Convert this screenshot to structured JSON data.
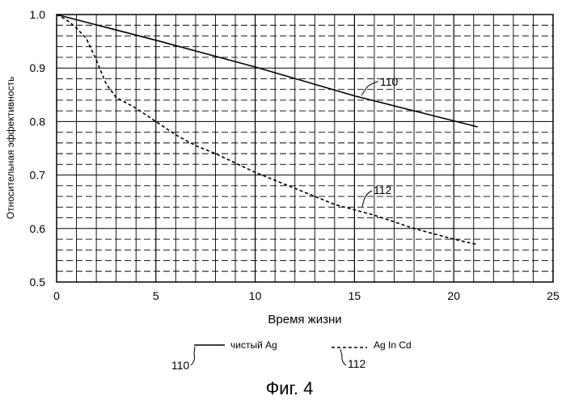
{
  "chart_data": {
    "type": "line",
    "title": "",
    "xlabel": "Время жизни",
    "ylabel": "Относительная эффективность",
    "xlim": [
      0,
      25
    ],
    "ylim": [
      0.5,
      1.0
    ],
    "xticks": [
      "0",
      "5",
      "10",
      "15",
      "20",
      "25"
    ],
    "yticks": [
      "0.5",
      "0.6",
      "0.7",
      "0.8",
      "0.9",
      "1.0"
    ],
    "grid": true,
    "series": [
      {
        "name": "чистый Ag",
        "ref": "110",
        "style": "solid",
        "x": [
          0,
          5,
          10,
          15,
          21.2
        ],
        "y": [
          1.0,
          0.952,
          0.902,
          0.848,
          0.79
        ]
      },
      {
        "name": "Ag In Cd",
        "ref": "112",
        "style": "dashed",
        "x": [
          0,
          0.5,
          1,
          1.5,
          2,
          2.5,
          3,
          4,
          5,
          6,
          7,
          8,
          10,
          12,
          14,
          16,
          18,
          20,
          21.2
        ],
        "y": [
          1.0,
          0.99,
          0.975,
          0.955,
          0.915,
          0.87,
          0.845,
          0.825,
          0.8,
          0.775,
          0.755,
          0.74,
          0.705,
          0.675,
          0.645,
          0.625,
          0.6,
          0.58,
          0.57
        ]
      }
    ],
    "legend": {
      "placement": "bottom",
      "items": [
        {
          "ref": "110",
          "label": "чистый Ag",
          "style": "solid"
        },
        {
          "ref": "112",
          "label": "Ag In Cd",
          "style": "dashed"
        }
      ]
    },
    "annotations": [
      {
        "text": "110",
        "series": "110"
      },
      {
        "text": "112",
        "series": "112"
      }
    ]
  },
  "caption": "Фиг. 4"
}
